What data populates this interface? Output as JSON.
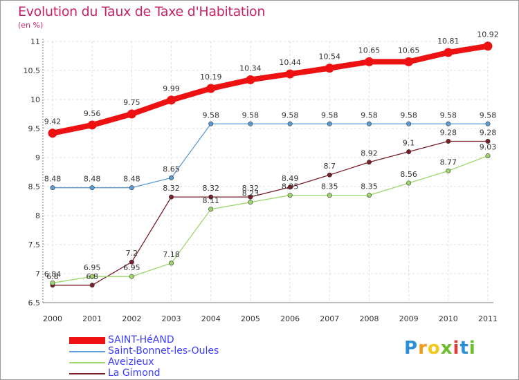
{
  "title": "Evolution du Taux de Taxe d'Habitation",
  "unit": "(en %)",
  "logo": {
    "text": "Proxiti",
    "letters": [
      "P",
      "r",
      "o",
      "x",
      "i",
      "t",
      "i"
    ],
    "colors": [
      "#2b8fd8",
      "#f29b1b",
      "#f2c81b",
      "#6cbf2a",
      "#e03a3a",
      "#2b8fd8",
      "#6cbf2a"
    ]
  },
  "chart_data": {
    "type": "line",
    "title": "Evolution du Taux de Taxe d'Habitation",
    "ylabel": "(en %)",
    "xlabel": "",
    "x": [
      "2000",
      "2001",
      "2002",
      "2003",
      "2004",
      "2005",
      "2006",
      "2007",
      "2008",
      "2009",
      "2010",
      "2011"
    ],
    "ylim": [
      6.5,
      11
    ],
    "yticks": [
      "6.5",
      "7",
      "7.5",
      "8",
      "8.5",
      "9",
      "9.5",
      "10",
      "10.5",
      "11"
    ],
    "series": [
      {
        "name": "SAINT-HéAND",
        "color": "#ee1111",
        "values": [
          9.42,
          9.56,
          9.75,
          9.99,
          10.19,
          10.34,
          10.44,
          10.54,
          10.65,
          10.65,
          10.81,
          10.92
        ],
        "labels": [
          "9.42",
          "9.56",
          "9.75",
          "9.99",
          "10.19",
          "10.34",
          "10.44",
          "10.54",
          "10.65",
          "10.65",
          "10.81",
          "10.92"
        ]
      },
      {
        "name": "Saint-Bonnet-les-Oules",
        "color": "#5b9bd5",
        "values": [
          8.48,
          8.48,
          8.48,
          8.65,
          9.58,
          9.58,
          9.58,
          9.58,
          9.58,
          9.58,
          9.58,
          9.58
        ],
        "labels": [
          "8.48",
          "8.48",
          "8.48",
          "8.65",
          "9.58",
          "9.58",
          "9.58",
          "9.58",
          "9.58",
          "9.58",
          "9.58",
          "9.58"
        ]
      },
      {
        "name": "Aveizieux",
        "color": "#9cd66b",
        "values": [
          6.84,
          6.95,
          6.95,
          7.18,
          8.11,
          8.23,
          8.35,
          8.35,
          8.35,
          8.56,
          8.77,
          9.03
        ],
        "labels": [
          "6.84",
          "6.95",
          "6.95",
          "7.18",
          "8.11",
          "8.23",
          "8.35",
          "8.35",
          "8.35",
          "8.56",
          "8.77",
          "9.03"
        ]
      },
      {
        "name": "La Gimond",
        "color": "#7a1f2a",
        "values": [
          6.8,
          6.8,
          7.2,
          8.32,
          8.32,
          8.32,
          8.49,
          8.7,
          8.92,
          9.1,
          9.28,
          9.28
        ],
        "labels": [
          "6.8",
          "6.8",
          "7.2",
          "8.32",
          "8.32",
          "8.32",
          "8.49",
          "8.7",
          "8.92",
          "9.1",
          "9.28",
          "9.28"
        ]
      }
    ]
  }
}
